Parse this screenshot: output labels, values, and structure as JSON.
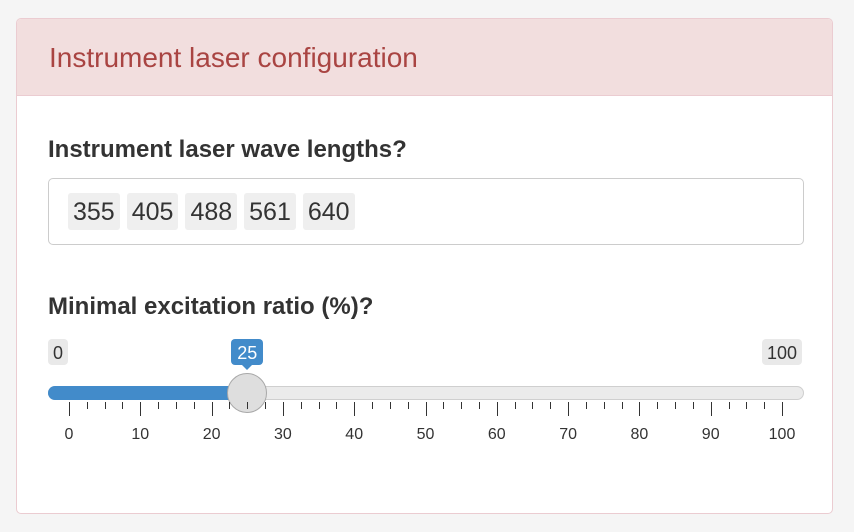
{
  "panel": {
    "title": "Instrument laser configuration"
  },
  "wavelengths": {
    "label": "Instrument laser wave lengths?",
    "tags": [
      "355",
      "405",
      "488",
      "561",
      "640"
    ]
  },
  "excitation_ratio": {
    "label": "Minimal excitation ratio (%)?",
    "min": "0",
    "max": "100",
    "value": "25",
    "value_number": 25,
    "grid_labels": [
      "0",
      "10",
      "20",
      "30",
      "40",
      "50",
      "60",
      "70",
      "80",
      "90",
      "100"
    ]
  },
  "colors": {
    "accent": "#428bca",
    "heading_bg": "#f2dede",
    "heading_text": "#a94442",
    "border": "#ebccd1"
  }
}
